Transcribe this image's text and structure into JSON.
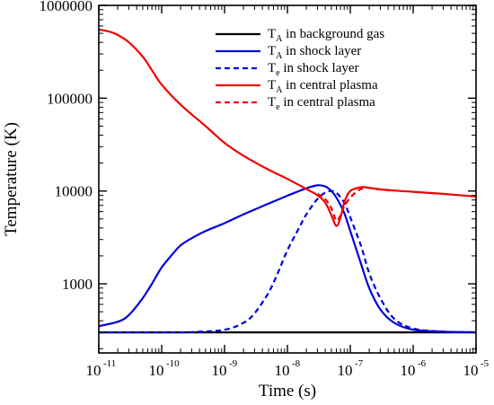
{
  "chart_data": {
    "type": "line",
    "xlabel": "Time (s)",
    "ylabel": "Temperature (K)",
    "xscale": "log",
    "yscale": "log",
    "xlim": [
      1e-11,
      1e-05
    ],
    "ylim": [
      180,
      1000000
    ],
    "grid": false,
    "legend_position": "top-right",
    "x_ticks": [
      {
        "base": "10",
        "exp": "-11",
        "value": 1e-11
      },
      {
        "base": "10",
        "exp": "-10",
        "value": 1e-10
      },
      {
        "base": "10",
        "exp": "-9",
        "value": 1e-09
      },
      {
        "base": "10",
        "exp": "-8",
        "value": 1e-08
      },
      {
        "base": "10",
        "exp": "-7",
        "value": 1e-07
      },
      {
        "base": "10",
        "exp": "-6",
        "value": 1e-06
      },
      {
        "base": "10",
        "exp": "-5",
        "value": 1e-05
      }
    ],
    "y_ticks": [
      {
        "label": "1000",
        "value": 1000
      },
      {
        "label": "10000",
        "value": 10000
      },
      {
        "label": "100000",
        "value": 100000
      },
      {
        "label": "1000000",
        "value": 1000000
      }
    ],
    "series": [
      {
        "name_main": "T",
        "name_sub": "A",
        "name_rest": " in background gas",
        "color": "#000000",
        "dash": "solid",
        "x": [
          1e-11,
          1e-05
        ],
        "y": [
          300,
          300
        ]
      },
      {
        "name_main": "T",
        "name_sub": "A",
        "name_rest": " in shock layer",
        "color": "#0000dd",
        "dash": "solid",
        "x": [
          1e-11,
          2e-11,
          3e-11,
          5e-11,
          7e-11,
          1e-10,
          1.5e-10,
          2e-10,
          3e-10,
          5e-10,
          1e-09,
          2e-09,
          5e-09,
          1e-08,
          2e-08,
          3e-08,
          4e-08,
          5e-08,
          6e-08,
          8e-08,
          1e-07,
          1.5e-07,
          2e-07,
          3e-07,
          5e-07,
          1e-06,
          3e-06,
          1e-05
        ],
        "y": [
          350,
          390,
          460,
          700,
          1000,
          1500,
          2100,
          2600,
          3100,
          3700,
          4500,
          5600,
          7300,
          8900,
          10700,
          11500,
          11200,
          10000,
          8500,
          5800,
          3700,
          1600,
          900,
          530,
          380,
          320,
          305,
          300
        ]
      },
      {
        "name_main": "T",
        "name_sub": "e",
        "name_rest": " in shock layer",
        "color": "#0000dd",
        "dash": "dashed",
        "x": [
          1e-11,
          1e-10,
          3e-10,
          1e-09,
          2e-09,
          3e-09,
          5e-09,
          7e-09,
          1e-08,
          1.5e-08,
          2e-08,
          3e-08,
          4e-08,
          5e-08,
          6e-08,
          8e-08,
          1e-07,
          1.5e-07,
          2e-07,
          3e-07,
          5e-07,
          1e-06,
          3e-06,
          1e-05
        ],
        "y": [
          300,
          300,
          302,
          320,
          380,
          480,
          800,
          1300,
          2300,
          3900,
          5600,
          8200,
          9600,
          10000,
          9600,
          7500,
          5200,
          2500,
          1300,
          700,
          420,
          330,
          305,
          300
        ]
      },
      {
        "name_main": "T",
        "name_sub": "A",
        "name_rest": " in central plasma",
        "color": "#ee0000",
        "dash": "solid",
        "x": [
          1e-11,
          1.5e-11,
          2e-11,
          3e-11,
          5e-11,
          7e-11,
          1e-10,
          2e-10,
          5e-10,
          1e-09,
          2e-09,
          5e-09,
          1e-08,
          2e-08,
          3e-08,
          4e-08,
          5e-08,
          6e-08,
          7e-08,
          8e-08,
          1e-07,
          1.5e-07,
          2e-07,
          3e-07,
          5e-07,
          1e-06,
          3e-06,
          1e-05
        ],
        "y": [
          550000,
          520000,
          480000,
          400000,
          280000,
          200000,
          140000,
          85000,
          50000,
          33000,
          24000,
          17000,
          13500,
          10500,
          9000,
          7500,
          5500,
          4200,
          5200,
          7500,
          10000,
          11000,
          10800,
          10400,
          10100,
          9800,
          9300,
          8700
        ]
      },
      {
        "name_main": "T",
        "name_sub": "e",
        "name_rest": " in central plasma",
        "color": "#ee0000",
        "dash": "dashed",
        "x": [
          3e-08,
          4e-08,
          5e-08,
          6e-08,
          7e-08,
          8e-08,
          1e-07,
          1.3e-07,
          1.6e-07,
          2e-07,
          3e-07,
          5e-07
        ],
        "y": [
          9300,
          8200,
          6500,
          4800,
          5500,
          6800,
          8500,
          10000,
          10700,
          10800,
          10400,
          10100
        ]
      }
    ]
  }
}
